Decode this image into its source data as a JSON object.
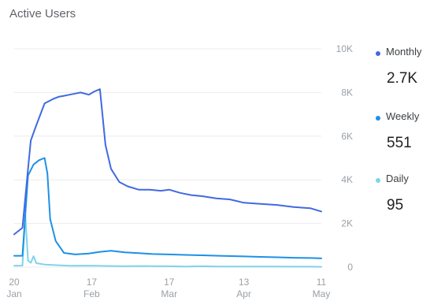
{
  "title": "Active Users",
  "legend": [
    {
      "name": "Monthly",
      "value": "2.7K",
      "color": "#4169e1"
    },
    {
      "name": "Weekly",
      "value": "551",
      "color": "#1e90e6"
    },
    {
      "name": "Daily",
      "value": "95",
      "color": "#7fd3ea"
    }
  ],
  "chart_data": {
    "type": "line",
    "title": "Active Users",
    "xlabel": "",
    "ylabel": "",
    "y_axis_side": "right",
    "ylim": [
      0,
      10000
    ],
    "yticks": [
      0,
      2000,
      4000,
      6000,
      8000,
      10000
    ],
    "ytick_labels": [
      "0",
      "2K",
      "4K",
      "6K",
      "8K",
      "10K"
    ],
    "xlim": [
      "2019-01-20",
      "2019-05-11"
    ],
    "xticks": [
      "2019-01-20",
      "2019-02-17",
      "2019-03-17",
      "2019-04-13",
      "2019-05-11"
    ],
    "xtick_labels": [
      [
        "20",
        "Jan"
      ],
      [
        "17",
        "Feb"
      ],
      [
        "17",
        "Mar"
      ],
      [
        "13",
        "Apr"
      ],
      [
        "11",
        "May"
      ]
    ],
    "grid": true,
    "legend_position": "right",
    "series": [
      {
        "name": "Monthly",
        "color": "#4169e1",
        "points": [
          [
            "2019-01-20",
            1500
          ],
          [
            "2019-01-23",
            1800
          ],
          [
            "2019-01-25",
            4500
          ],
          [
            "2019-01-26",
            5800
          ],
          [
            "2019-01-28",
            6500
          ],
          [
            "2019-01-31",
            7500
          ],
          [
            "2019-02-03",
            7700
          ],
          [
            "2019-02-05",
            7800
          ],
          [
            "2019-02-07",
            7850
          ],
          [
            "2019-02-09",
            7900
          ],
          [
            "2019-02-11",
            7950
          ],
          [
            "2019-02-13",
            8000
          ],
          [
            "2019-02-16",
            7900
          ],
          [
            "2019-02-18",
            8050
          ],
          [
            "2019-02-20",
            8150
          ],
          [
            "2019-02-22",
            5600
          ],
          [
            "2019-02-24",
            4500
          ],
          [
            "2019-02-27",
            3900
          ],
          [
            "2019-03-02",
            3700
          ],
          [
            "2019-03-06",
            3550
          ],
          [
            "2019-03-10",
            3550
          ],
          [
            "2019-03-14",
            3500
          ],
          [
            "2019-03-17",
            3550
          ],
          [
            "2019-03-21",
            3400
          ],
          [
            "2019-03-25",
            3300
          ],
          [
            "2019-03-29",
            3250
          ],
          [
            "2019-04-03",
            3150
          ],
          [
            "2019-04-08",
            3100
          ],
          [
            "2019-04-13",
            2950
          ],
          [
            "2019-04-19",
            2900
          ],
          [
            "2019-04-25",
            2850
          ],
          [
            "2019-05-01",
            2750
          ],
          [
            "2019-05-07",
            2700
          ],
          [
            "2019-05-11",
            2550
          ]
        ]
      },
      {
        "name": "Weekly",
        "color": "#1e90e6",
        "points": [
          [
            "2019-01-20",
            520
          ],
          [
            "2019-01-23",
            520
          ],
          [
            "2019-01-25",
            4200
          ],
          [
            "2019-01-27",
            4700
          ],
          [
            "2019-01-29",
            4900
          ],
          [
            "2019-01-31",
            5000
          ],
          [
            "2019-02-01",
            4300
          ],
          [
            "2019-02-02",
            2200
          ],
          [
            "2019-02-04",
            1200
          ],
          [
            "2019-02-07",
            650
          ],
          [
            "2019-02-11",
            580
          ],
          [
            "2019-02-16",
            620
          ],
          [
            "2019-02-20",
            700
          ],
          [
            "2019-02-24",
            750
          ],
          [
            "2019-03-01",
            680
          ],
          [
            "2019-03-06",
            640
          ],
          [
            "2019-03-11",
            600
          ],
          [
            "2019-03-17",
            580
          ],
          [
            "2019-03-23",
            560
          ],
          [
            "2019-03-29",
            540
          ],
          [
            "2019-04-04",
            520
          ],
          [
            "2019-04-10",
            500
          ],
          [
            "2019-04-13",
            490
          ],
          [
            "2019-04-19",
            470
          ],
          [
            "2019-04-25",
            450
          ],
          [
            "2019-05-01",
            430
          ],
          [
            "2019-05-07",
            420
          ],
          [
            "2019-05-11",
            400
          ]
        ]
      },
      {
        "name": "Daily",
        "color": "#7fd3ea",
        "points": [
          [
            "2019-01-20",
            60
          ],
          [
            "2019-01-23",
            70
          ],
          [
            "2019-01-24",
            2400
          ],
          [
            "2019-01-25",
            300
          ],
          [
            "2019-01-26",
            200
          ],
          [
            "2019-01-27",
            500
          ],
          [
            "2019-01-28",
            180
          ],
          [
            "2019-01-31",
            120
          ],
          [
            "2019-02-04",
            90
          ],
          [
            "2019-02-09",
            60
          ],
          [
            "2019-02-14",
            70
          ],
          [
            "2019-02-19",
            60
          ],
          [
            "2019-02-24",
            50
          ],
          [
            "2019-03-01",
            40
          ],
          [
            "2019-03-07",
            50
          ],
          [
            "2019-03-13",
            40
          ],
          [
            "2019-03-17",
            40
          ],
          [
            "2019-03-23",
            30
          ],
          [
            "2019-03-29",
            40
          ],
          [
            "2019-04-04",
            30
          ],
          [
            "2019-04-10",
            30
          ],
          [
            "2019-04-13",
            30
          ],
          [
            "2019-04-19",
            25
          ],
          [
            "2019-04-25",
            25
          ],
          [
            "2019-05-01",
            20
          ],
          [
            "2019-05-07",
            20
          ],
          [
            "2019-05-11",
            15
          ]
        ]
      }
    ]
  }
}
